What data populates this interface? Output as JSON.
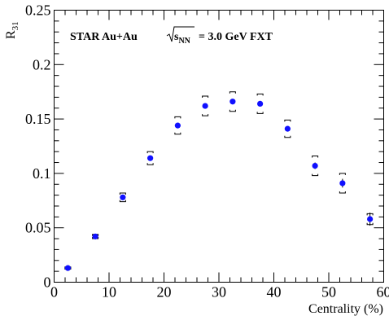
{
  "chart_data": {
    "type": "scatter",
    "xlabel": "Centrality (%)",
    "ylabel_main": "R",
    "ylabel_sub": "31",
    "xlim": [
      0,
      60
    ],
    "ylim": [
      0,
      0.25
    ],
    "x_ticks": [
      "0",
      "10",
      "20",
      "30",
      "40",
      "50",
      "60"
    ],
    "y_ticks": [
      "0",
      "0.05",
      "0.1",
      "0.15",
      "0.2",
      "0.25"
    ],
    "x_tick_values": [
      0,
      10,
      20,
      30,
      40,
      50,
      60
    ],
    "y_tick_values": [
      0,
      0.05,
      0.1,
      0.15,
      0.2,
      0.25
    ],
    "annotation": {
      "text1": "STAR Au+Au",
      "sqrt_label": "s",
      "sqrt_sub": "NN",
      "text2": "= 3.0 GeV FXT"
    },
    "marker_color": "#1010ff",
    "series": [
      {
        "x": [
          2.5,
          7.5,
          12.5,
          17.5,
          22.5,
          27.5,
          32.5,
          37.5,
          42.5,
          47.5,
          52.5,
          57.5
        ],
        "values": [
          0.013,
          0.042,
          0.078,
          0.114,
          0.144,
          0.162,
          0.166,
          0.164,
          0.141,
          0.107,
          0.091,
          0.058
        ],
        "sys_err": [
          0.001,
          0.002,
          0.004,
          0.006,
          0.008,
          0.009,
          0.009,
          0.009,
          0.008,
          0.009,
          0.009,
          0.005
        ],
        "stat_err": [
          0.0005,
          0.001,
          0.002,
          0.002,
          0.002,
          0.002,
          0.002,
          0.002,
          0.002,
          0.003,
          0.004,
          0.006
        ]
      }
    ]
  }
}
